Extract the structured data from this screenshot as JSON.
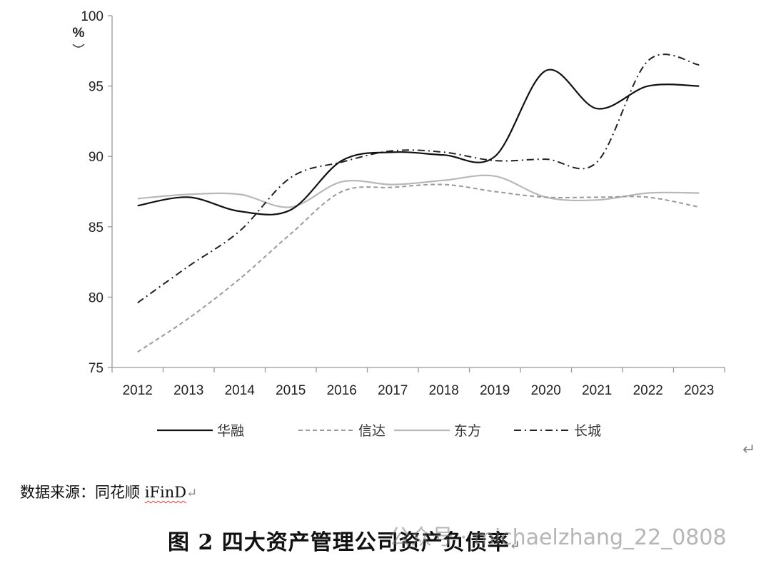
{
  "chart_data": {
    "type": "line",
    "title": "图2 四大资产管理公司资产负债率",
    "xlabel": "",
    "ylabel": "（%）",
    "ylim": [
      75,
      100
    ],
    "yticks": [
      75,
      80,
      85,
      90,
      95,
      100
    ],
    "grid": false,
    "legend_position": "bottom",
    "categories": [
      "2012",
      "2013",
      "2014",
      "2015",
      "2016",
      "2017",
      "2018",
      "2019",
      "2020",
      "2021",
      "2022",
      "2023"
    ],
    "series": [
      {
        "name": "华融",
        "style": "solid",
        "color": "#111111",
        "width": 2.2,
        "dash": "",
        "values": [
          86.5,
          87.1,
          86.1,
          86.2,
          89.7,
          90.3,
          90.1,
          90.0,
          96.1,
          93.4,
          95.0,
          95.0
        ]
      },
      {
        "name": "信达",
        "style": "dashed",
        "color": "#9a9a9a",
        "width": 2,
        "dash": "6 4",
        "values": [
          76.1,
          78.5,
          81.3,
          84.5,
          87.5,
          87.8,
          88.0,
          87.5,
          87.1,
          87.1,
          87.1,
          86.4
        ]
      },
      {
        "name": "东方",
        "style": "solid-light",
        "color": "#b8b8b8",
        "width": 2.2,
        "dash": "",
        "values": [
          87.0,
          87.3,
          87.3,
          86.4,
          88.2,
          88.0,
          88.3,
          88.6,
          87.1,
          86.9,
          87.4,
          87.4
        ]
      },
      {
        "name": "长城",
        "style": "dash-dot",
        "color": "#222222",
        "width": 2,
        "dash": "10 5 2 5",
        "values": [
          79.6,
          82.2,
          84.7,
          88.5,
          89.6,
          90.4,
          90.3,
          89.7,
          89.8,
          89.6,
          96.8,
          96.5
        ]
      }
    ]
  },
  "axis": {
    "y_unit_line1": "%",
    "y_unit_paren": "（"
  },
  "source": {
    "label": "数据来源：同花顺 ",
    "name": "iFinD",
    "mark": "↵"
  },
  "caption": {
    "text": "图 2  四大资产管理公司资产负债率",
    "mark": "↵"
  },
  "watermark": {
    "text": "公众号 · michaelzhang_22_0808"
  },
  "paragraph_mark": "↵"
}
